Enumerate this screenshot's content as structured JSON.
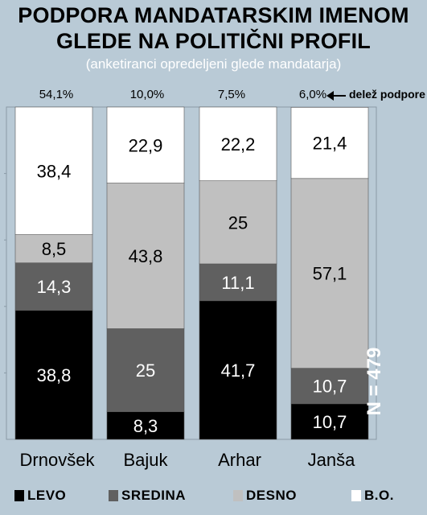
{
  "title_line1": "PODPORA MANDATARSKIM IMENOM",
  "title_line2": "GLEDE NA POLITIČNI PROFIL",
  "subtitle": "(anketiranci opredeljeni glede mandatarja)",
  "share_note": "delež podpore",
  "n_label": "N = 479",
  "colors": {
    "levo": "#000000",
    "sredina": "#606060",
    "desno": "#c0c0c0",
    "bo": "#ffffff"
  },
  "chart_data": {
    "type": "bar",
    "stacked": true,
    "categories": [
      "Drnovšek",
      "Bajuk",
      "Arhar",
      "Janša"
    ],
    "shares": [
      "54,1%",
      "10,0%",
      "7,5%",
      "6,0%"
    ],
    "series": [
      {
        "name": "LEVO",
        "values": [
          38.8,
          8.3,
          41.7,
          10.7
        ],
        "labels": [
          "38,8",
          "8,3",
          "41,7",
          "10,7"
        ]
      },
      {
        "name": "SREDINA",
        "values": [
          14.3,
          25,
          11.1,
          10.7
        ],
        "labels": [
          "14,3",
          "25",
          "11,1",
          "10,7"
        ]
      },
      {
        "name": "DESNO",
        "values": [
          8.5,
          43.8,
          25,
          57.1
        ],
        "labels": [
          "8,5",
          "43,8",
          "25",
          "57,1"
        ]
      },
      {
        "name": "B.O.",
        "values": [
          38.4,
          22.9,
          22.2,
          21.4
        ],
        "labels": [
          "38,4",
          "22,9",
          "22,2",
          "21,4"
        ]
      }
    ],
    "ylim": [
      0,
      100
    ]
  }
}
